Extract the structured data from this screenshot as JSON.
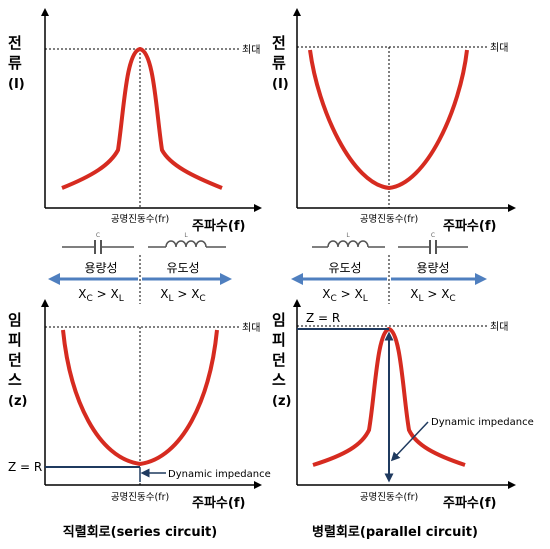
{
  "top_left": {
    "y_axis_chars": [
      "전",
      "류",
      "(I)"
    ],
    "max_label": "최대",
    "x_axis_label": "주파수(f)",
    "resonance_label": "공명진동수(fr)"
  },
  "top_right": {
    "y_axis_chars": [
      "전",
      "류",
      "(I)"
    ],
    "max_label": "최대",
    "x_axis_label": "주파수(f)",
    "resonance_label": "공명진동수(fr)"
  },
  "bottom_left": {
    "y_axis_chars": [
      "임",
      "피",
      "던",
      "스",
      "(z)"
    ],
    "max_label": "최대",
    "x_axis_label": "주파수(f)",
    "resonance_label": "공명진동수(fr)",
    "z_label": "Z = R",
    "dynamic_label": "Dynamic impedance"
  },
  "bottom_right": {
    "y_axis_chars": [
      "임",
      "피",
      "던",
      "스",
      "(z)"
    ],
    "max_label": "최대",
    "x_axis_label": "주파수(f)",
    "resonance_label": "공명진동수(fr)",
    "z_label": "Z = R",
    "dynamic_label": "Dynamic impedance"
  },
  "left_middle": {
    "capacitor_letter": "C",
    "inductor_letter": "L",
    "left_word": "용량성",
    "right_word": "유도성",
    "left_relation": "XC > XL",
    "right_relation": "XL > XC"
  },
  "right_middle": {
    "capacitor_letter": "C",
    "inductor_letter": "L",
    "left_word": "유도성",
    "right_word": "용량성",
    "left_relation": "XC > XL",
    "right_relation": "XL > XC"
  },
  "captions": {
    "left": "직렬회로(series circuit)",
    "right": "병렬회로(parallel circuit)"
  },
  "colors": {
    "curve": "#d62b20",
    "arrow": "#4f7fbf",
    "axis": "#000000",
    "navy": "#1f3a5f"
  }
}
